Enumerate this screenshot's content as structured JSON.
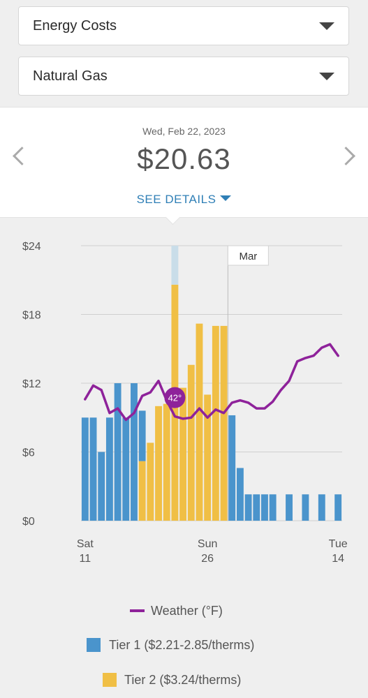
{
  "filters": {
    "category": "Energy Costs",
    "fuel": "Natural Gas"
  },
  "summary": {
    "date": "Wed, Feb 22, 2023",
    "amount": "$20.63",
    "details_label": "SEE DETAILS"
  },
  "colors": {
    "tier1": "#4a94cc",
    "tier2": "#f0bf45",
    "weather": "#8e229a",
    "selected_tier1": "#c9dde9",
    "accent_text": "#2f7fb6"
  },
  "chart_data": {
    "type": "bar",
    "ylim": [
      0,
      24
    ],
    "yticks": [
      "$0",
      "$6",
      "$12",
      "$18",
      "$24"
    ],
    "ytick_values": [
      0,
      6,
      12,
      18,
      24
    ],
    "xtick_labels": [
      {
        "day": "Sat",
        "date": "11",
        "index": 0
      },
      {
        "day": "Sun",
        "date": "26",
        "index": 15
      },
      {
        "day": "Tue",
        "date": "14",
        "index": 31
      }
    ],
    "month_marker": {
      "label": "Mar",
      "index": 18
    },
    "selected_index": 11,
    "weather_marker_label": "42°",
    "days": 32,
    "series": [
      {
        "name": "Tier 1 ($2.21-2.85/therms)",
        "values": [
          9,
          9,
          6,
          9,
          12,
          9,
          12,
          4.4,
          0,
          0,
          0,
          3.4,
          0,
          0,
          0,
          0,
          0,
          0,
          9.2,
          4.6,
          2.3,
          2.3,
          2.3,
          2.3,
          0,
          2.3,
          0,
          2.3,
          0,
          2.3,
          0,
          2.3
        ]
      },
      {
        "name": "Tier 2 ($3.24/therms)",
        "values": [
          0,
          0,
          0,
          0,
          0,
          0,
          0,
          5.2,
          6.8,
          10,
          10.2,
          20.6,
          11.6,
          13.6,
          17.2,
          11,
          17,
          17,
          0,
          0,
          0,
          0,
          0,
          0,
          0,
          0,
          0,
          0,
          0,
          0,
          0,
          0
        ]
      },
      {
        "name": "Weather (°F)",
        "type": "line",
        "values": [
          10.6,
          11.8,
          11.4,
          9.4,
          9.8,
          8.8,
          9.4,
          10.9,
          11.2,
          12.2,
          10.5,
          9.1,
          8.9,
          9,
          9.8,
          9,
          9.7,
          9.4,
          10.3,
          10.5,
          10.3,
          9.8,
          9.8,
          10.4,
          11.4,
          12.2,
          13.9,
          14.2,
          14.4,
          15.1,
          15.4,
          14.4
        ]
      }
    ],
    "legend": [
      {
        "label": "Weather (°F)",
        "kind": "line",
        "color": "#8e229a"
      },
      {
        "label": "Tier 1 ($2.21-2.85/therms)",
        "kind": "box",
        "color": "#4a94cc"
      },
      {
        "label": "Tier 2 ($3.24/therms)",
        "kind": "box",
        "color": "#f0bf45"
      }
    ]
  }
}
